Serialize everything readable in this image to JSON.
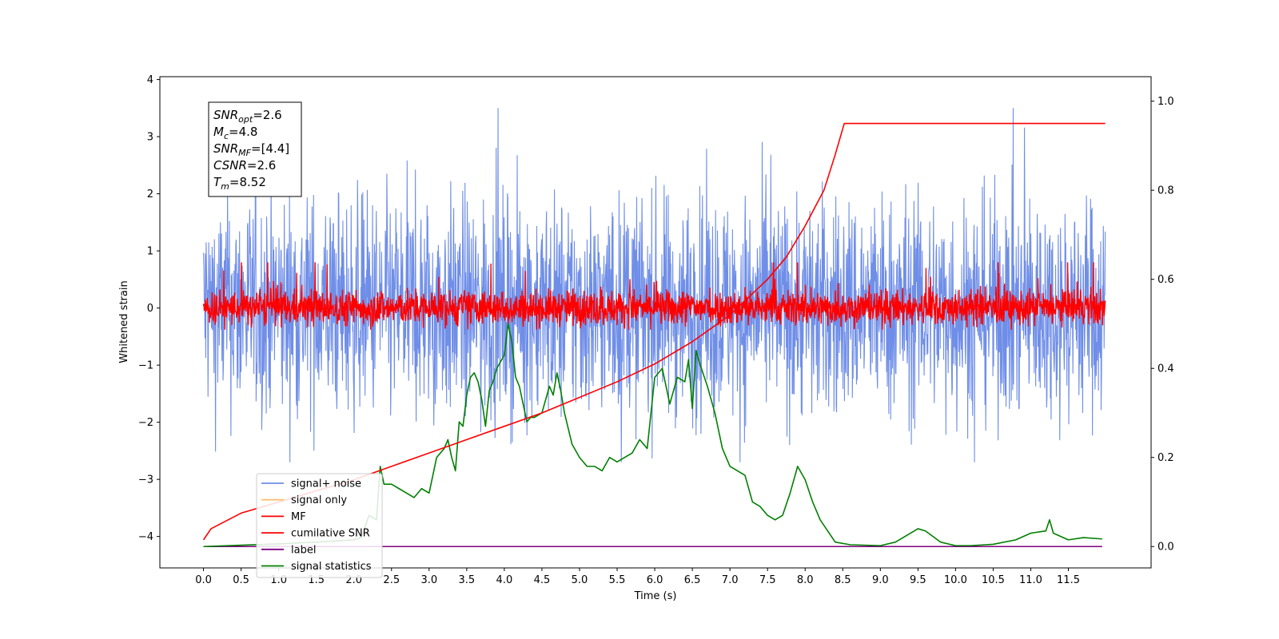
{
  "chart_data": {
    "type": "line",
    "xlabel": "Time (s)",
    "ylabel": "Whitened strain",
    "xlim": [
      -0.58,
      12.6
    ],
    "ylim": [
      -4.55,
      4.05
    ],
    "ylim_right": [
      -0.048,
      1.055
    ],
    "x_ticks": [
      "0.0",
      "0.5",
      "1.0",
      "1.5",
      "2.0",
      "2.5",
      "3.0",
      "3.5",
      "4.0",
      "4.5",
      "5.0",
      "5.5",
      "6.0",
      "6.5",
      "7.0",
      "7.5",
      "8.0",
      "8.5",
      "9.0",
      "9.5",
      "10.0",
      "10.5",
      "11.0",
      "11.5"
    ],
    "y_ticks_left": [
      "−4",
      "−3",
      "−2",
      "−1",
      "0",
      "1",
      "2",
      "3",
      "4"
    ],
    "y_ticks_right": [
      "0.0",
      "0.2",
      "0.4",
      "0.6",
      "0.8",
      "1.0"
    ],
    "grid": false,
    "legend_position": "lower-left",
    "colors": {
      "signal_noise": "#6f8ee8",
      "signal_only": "#ffbf70",
      "mf": "#ff0000",
      "cumulative_snr": "#ff0000",
      "label": "#800080",
      "signal_statistics": "#008000"
    },
    "series": [
      {
        "name": "signal+ noise",
        "axis": "left",
        "kind": "noise",
        "amplitude_range": [
          -2.2,
          2.5
        ],
        "x_range": [
          0.0,
          11.99
        ]
      },
      {
        "name": "signal only",
        "axis": "left",
        "kind": "flat",
        "values": []
      },
      {
        "name": "MF",
        "axis": "left",
        "kind": "noise",
        "amplitude_range": [
          -0.38,
          0.8
        ],
        "x_range": [
          0.0,
          11.99
        ]
      },
      {
        "name": "cumilative SNR",
        "axis": "right",
        "x": [
          0.0,
          0.1,
          0.5,
          1.0,
          1.5,
          2.0,
          2.5,
          3.0,
          3.5,
          4.0,
          4.5,
          5.0,
          5.5,
          6.0,
          6.5,
          7.0,
          7.5,
          7.75,
          8.0,
          8.25,
          8.4,
          8.52,
          9.0,
          10.0,
          11.0,
          11.99
        ],
        "values": [
          0.015,
          0.04,
          0.075,
          0.1,
          0.125,
          0.15,
          0.18,
          0.21,
          0.24,
          0.27,
          0.3,
          0.335,
          0.37,
          0.41,
          0.46,
          0.52,
          0.6,
          0.65,
          0.72,
          0.8,
          0.88,
          0.95,
          0.95,
          0.95,
          0.95,
          0.95
        ]
      },
      {
        "name": "label",
        "axis": "right",
        "x": [
          0.0,
          11.95
        ],
        "values": [
          0.0,
          0.0
        ]
      },
      {
        "name": "signal statistics",
        "axis": "right",
        "x": [
          0.0,
          0.5,
          1.0,
          1.5,
          2.0,
          2.1,
          2.2,
          2.3,
          2.35,
          2.4,
          2.5,
          2.6,
          2.7,
          2.8,
          2.9,
          3.0,
          3.1,
          3.2,
          3.25,
          3.3,
          3.35,
          3.4,
          3.45,
          3.5,
          3.55,
          3.6,
          3.65,
          3.7,
          3.75,
          3.8,
          3.85,
          3.9,
          4.0,
          4.05,
          4.1,
          4.15,
          4.2,
          4.25,
          4.3,
          4.35,
          4.4,
          4.5,
          4.6,
          4.65,
          4.7,
          4.75,
          4.8,
          4.9,
          5.0,
          5.1,
          5.2,
          5.3,
          5.4,
          5.5,
          5.6,
          5.7,
          5.8,
          5.9,
          6.0,
          6.1,
          6.2,
          6.3,
          6.4,
          6.45,
          6.5,
          6.55,
          6.6,
          6.7,
          6.8,
          6.9,
          7.0,
          7.1,
          7.2,
          7.3,
          7.4,
          7.5,
          7.6,
          7.7,
          7.8,
          7.9,
          8.0,
          8.1,
          8.2,
          8.4,
          8.6,
          9.0,
          9.2,
          9.4,
          9.5,
          9.6,
          9.8,
          10.0,
          10.2,
          10.5,
          10.8,
          11.0,
          11.2,
          11.25,
          11.3,
          11.5,
          11.7,
          11.95
        ],
        "values": [
          0.0,
          0.003,
          0.006,
          0.01,
          0.015,
          0.02,
          0.07,
          0.06,
          0.18,
          0.14,
          0.14,
          0.13,
          0.12,
          0.11,
          0.13,
          0.12,
          0.2,
          0.22,
          0.24,
          0.2,
          0.17,
          0.28,
          0.27,
          0.34,
          0.38,
          0.39,
          0.37,
          0.33,
          0.27,
          0.35,
          0.37,
          0.4,
          0.43,
          0.5,
          0.46,
          0.38,
          0.36,
          0.32,
          0.28,
          0.29,
          0.29,
          0.3,
          0.36,
          0.34,
          0.39,
          0.35,
          0.3,
          0.23,
          0.2,
          0.18,
          0.18,
          0.17,
          0.2,
          0.19,
          0.2,
          0.21,
          0.24,
          0.22,
          0.38,
          0.4,
          0.32,
          0.38,
          0.37,
          0.42,
          0.31,
          0.44,
          0.41,
          0.36,
          0.3,
          0.22,
          0.18,
          0.17,
          0.16,
          0.1,
          0.09,
          0.07,
          0.06,
          0.07,
          0.12,
          0.18,
          0.15,
          0.1,
          0.06,
          0.01,
          0.004,
          0.002,
          0.01,
          0.03,
          0.04,
          0.035,
          0.01,
          0.002,
          0.002,
          0.005,
          0.015,
          0.03,
          0.035,
          0.06,
          0.03,
          0.015,
          0.02,
          0.017
        ]
      }
    ]
  },
  "annotation_box": {
    "lines": [
      {
        "main": "SNR",
        "sub": "opt",
        "value": "=2.6"
      },
      {
        "main": "M",
        "sub": "c",
        "value": "=4.8"
      },
      {
        "main": "SNR",
        "sub": "MF",
        "value": "=[4.4]"
      },
      {
        "main": "CSNR",
        "sub": "",
        "value": "=2.6"
      },
      {
        "main": "T",
        "sub": "m",
        "value": "=8.52"
      }
    ]
  },
  "legend": {
    "items": [
      {
        "label": "signal+ noise",
        "color": "#6f8ee8"
      },
      {
        "label": "signal only",
        "color": "#ffbf70"
      },
      {
        "label": "MF",
        "color": "#ff0000"
      },
      {
        "label": "cumilative SNR",
        "color": "#ff0000"
      },
      {
        "label": "label",
        "color": "#800080"
      },
      {
        "label": "signal statistics",
        "color": "#008000"
      }
    ]
  }
}
